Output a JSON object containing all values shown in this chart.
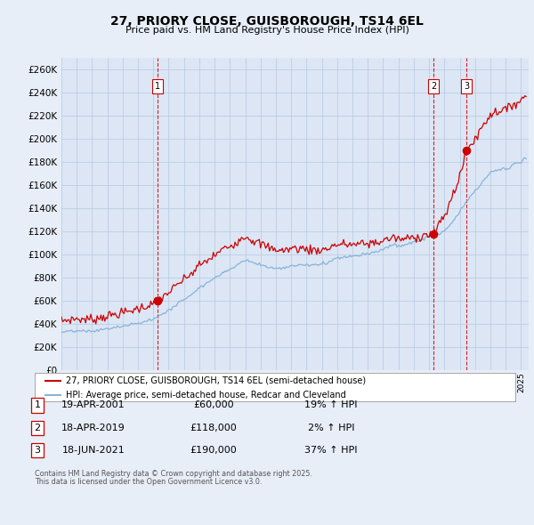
{
  "title": "27, PRIORY CLOSE, GUISBOROUGH, TS14 6EL",
  "subtitle": "Price paid vs. HM Land Registry's House Price Index (HPI)",
  "fig_bg_color": "#e8eef8",
  "plot_bg_color": "#dce6f5",
  "red_line_color": "#cc0000",
  "blue_line_color": "#88b4d8",
  "grid_color": "#b8c8e0",
  "sale_dot_color": "#cc0000",
  "vline_color": "#cc0000",
  "ylim": [
    0,
    270000
  ],
  "ytick_step": 20000,
  "xlim_start": 1995.0,
  "xlim_end": 2025.5,
  "legend_entry1": "27, PRIORY CLOSE, GUISBOROUGH, TS14 6EL (semi-detached house)",
  "legend_entry2": "HPI: Average price, semi-detached house, Redcar and Cleveland",
  "sale1_date": "19-APR-2001",
  "sale1_price": 60000,
  "sale1_hpi": "19% ↑ HPI",
  "sale2_date": "18-APR-2019",
  "sale2_price": 118000,
  "sale2_hpi": "2% ↑ HPI",
  "sale3_date": "18-JUN-2021",
  "sale3_price": 190000,
  "sale3_hpi": "37% ↑ HPI",
  "footer_line1": "Contains HM Land Registry data © Crown copyright and database right 2025.",
  "footer_line2": "This data is licensed under the Open Government Licence v3.0.",
  "sale1_x": 2001.29,
  "sale2_x": 2019.29,
  "sale3_x": 2021.46
}
